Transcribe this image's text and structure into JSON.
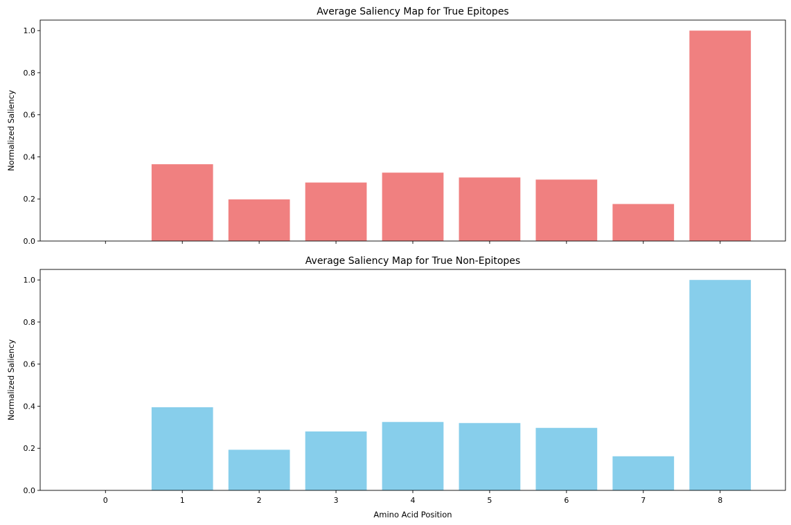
{
  "chart_data": [
    {
      "type": "bar",
      "title": "Average Saliency Map for True Epitopes",
      "xlabel": "",
      "ylabel": "Normalized Saliency",
      "categories": [
        "0",
        "1",
        "2",
        "3",
        "4",
        "5",
        "6",
        "7",
        "8"
      ],
      "x": [
        0,
        1,
        2,
        3,
        4,
        5,
        6,
        7,
        8
      ],
      "values": [
        0.0,
        0.365,
        0.198,
        0.278,
        0.325,
        0.302,
        0.292,
        0.176,
        1.0
      ],
      "xlim": [
        -0.85,
        8.85
      ],
      "ylim": [
        0,
        1.05
      ],
      "yticks": [
        0.0,
        0.2,
        0.4,
        0.6,
        0.8,
        1.0
      ],
      "ytick_labels": [
        "0.0",
        "0.2",
        "0.4",
        "0.6",
        "0.8",
        "1.0"
      ],
      "show_xtick_labels": false,
      "color": "#f08080",
      "grid": false
    },
    {
      "type": "bar",
      "title": "Average Saliency Map for True Non-Epitopes",
      "xlabel": "Amino Acid Position",
      "ylabel": "Normalized Saliency",
      "categories": [
        "0",
        "1",
        "2",
        "3",
        "4",
        "5",
        "6",
        "7",
        "8"
      ],
      "x": [
        0,
        1,
        2,
        3,
        4,
        5,
        6,
        7,
        8
      ],
      "values": [
        0.0,
        0.395,
        0.193,
        0.28,
        0.325,
        0.32,
        0.297,
        0.162,
        1.0
      ],
      "xlim": [
        -0.85,
        8.85
      ],
      "ylim": [
        0,
        1.05
      ],
      "yticks": [
        0.0,
        0.2,
        0.4,
        0.6,
        0.8,
        1.0
      ],
      "ytick_labels": [
        "0.0",
        "0.2",
        "0.4",
        "0.6",
        "0.8",
        "1.0"
      ],
      "show_xtick_labels": true,
      "color": "#87ceeb",
      "grid": false
    }
  ]
}
